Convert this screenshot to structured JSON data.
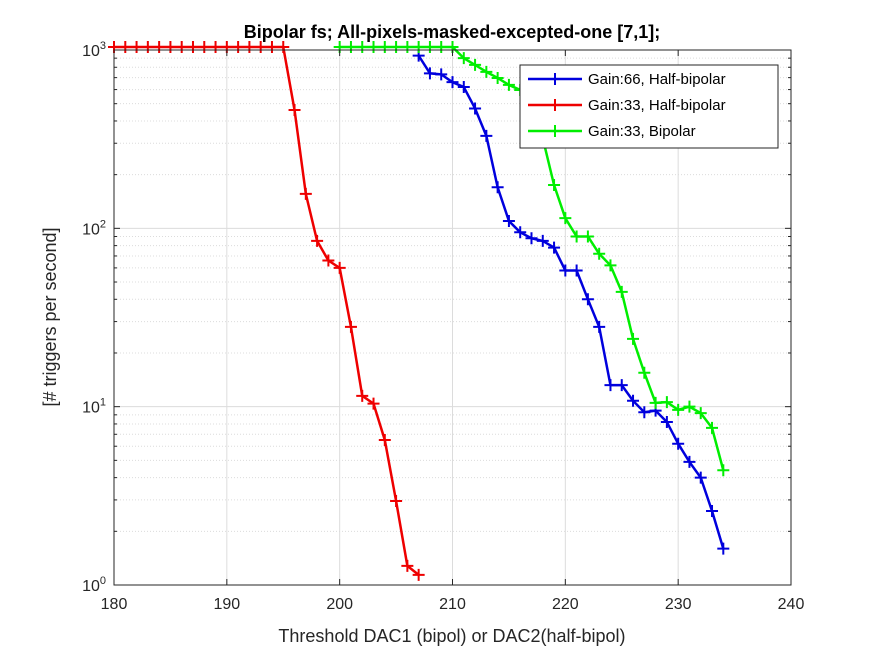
{
  "chart_data": {
    "type": "line",
    "title": "Bipolar fs; All-pixels-masked-excepted-one [7,1];",
    "x_label": "Threshold DAC1 (bipol) or DAC2(half-bipol)",
    "y_label": "[# triggers per second]",
    "yscale": "log",
    "grid": true,
    "minor_grid": true,
    "legend_position": "northeast",
    "xlim": [
      180,
      240
    ],
    "xticks": [
      180,
      190,
      200,
      210,
      220,
      230,
      240
    ],
    "ylim": [
      1,
      1000
    ],
    "yticks": [
      {
        "value": 1,
        "label": "10^0"
      },
      {
        "value": 10,
        "label": "10^1"
      },
      {
        "value": 100,
        "label": "10^2"
      },
      {
        "value": 1000,
        "label": "10^3"
      }
    ],
    "series": [
      {
        "name": "Gain:66, Half-bipolar",
        "color": "#0000dd",
        "x": [
          207,
          208,
          209,
          210,
          211,
          212,
          213,
          214,
          215,
          216,
          217,
          218,
          219,
          220,
          221,
          222,
          223,
          224,
          225,
          226,
          227,
          228,
          229,
          230,
          231,
          232,
          233,
          234
        ],
        "values": [
          930,
          740,
          730,
          660,
          620,
          470,
          330,
          170,
          110,
          95,
          88,
          85,
          78,
          58,
          58,
          40,
          28,
          13.2,
          13.2,
          10.8,
          9.3,
          9.5,
          8.2,
          6.2,
          4.9,
          4.0,
          2.6,
          1.6
        ]
      },
      {
        "name": "Gain:33, Half-bipolar",
        "color": "#ee0000",
        "x": [
          180,
          181,
          182,
          183,
          184,
          185,
          186,
          187,
          188,
          189,
          190,
          191,
          192,
          193,
          194,
          195,
          196,
          197,
          198,
          199,
          200,
          201,
          202,
          203,
          204,
          205,
          206,
          207
        ],
        "values": [
          1040,
          1040,
          1040,
          1040,
          1040,
          1040,
          1040,
          1040,
          1040,
          1040,
          1040,
          1040,
          1040,
          1040,
          1040,
          1040,
          461,
          156,
          85,
          66,
          60,
          28,
          11.5,
          10.4,
          6.5,
          2.96,
          1.28,
          1.14
        ]
      },
      {
        "name": "Gain:33, Bipolar",
        "color": "#00ee00",
        "x": [
          200,
          201,
          202,
          203,
          204,
          205,
          206,
          207,
          208,
          209,
          210,
          211,
          212,
          213,
          214,
          215,
          216,
          217,
          218,
          219,
          220,
          221,
          222,
          223,
          224,
          225,
          226,
          227,
          228,
          229,
          230,
          231,
          232,
          233,
          234
        ],
        "values": [
          1040,
          1040,
          1040,
          1040,
          1040,
          1040,
          1040,
          1040,
          1040,
          1040,
          1040,
          900,
          825,
          754,
          697,
          637,
          597,
          560,
          320,
          175,
          114,
          90,
          90,
          72,
          62,
          44,
          24,
          15.5,
          10.5,
          10.6,
          9.6,
          10,
          9.2,
          7.6,
          4.4
        ]
      }
    ]
  }
}
